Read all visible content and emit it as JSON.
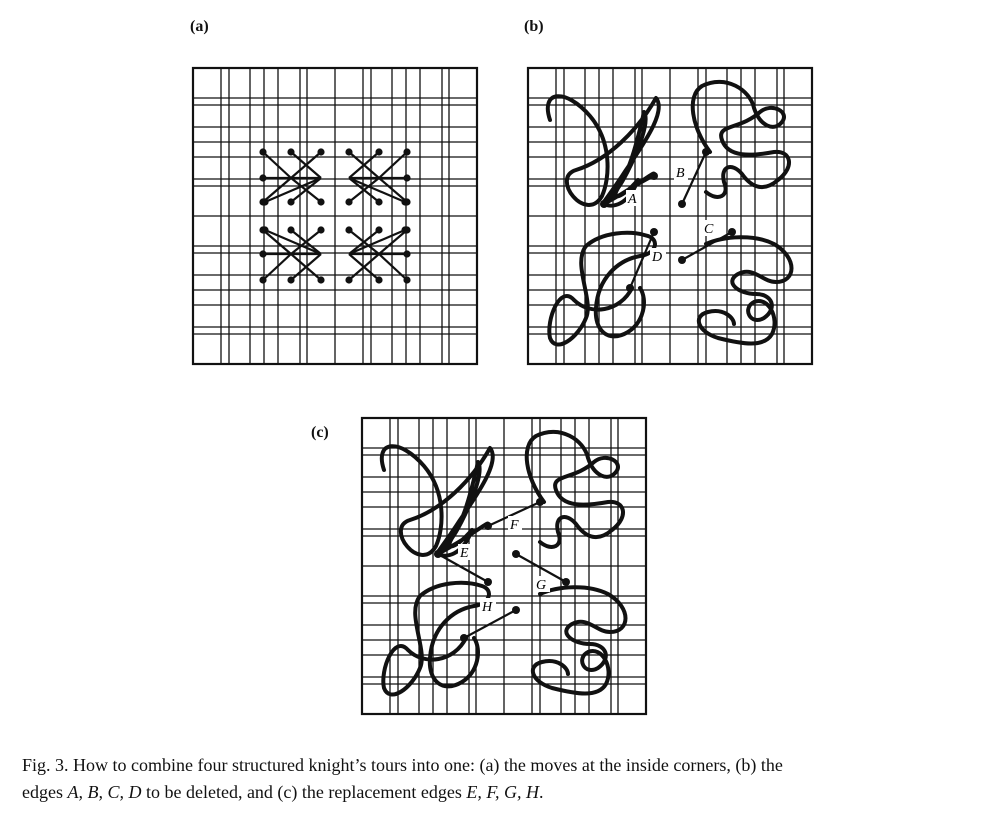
{
  "panels": [
    {
      "id": "a",
      "label": "(a)"
    },
    {
      "id": "b",
      "label": "(b)",
      "edge_labels": [
        "A",
        "B",
        "C",
        "D"
      ]
    },
    {
      "id": "c",
      "label": "(c)",
      "edge_labels": [
        "E",
        "F",
        "G",
        "H"
      ]
    }
  ],
  "caption": {
    "lead": "Fig. 3. How to combine four structured knight’s tours into one: (a) the moves at the inside corners, (b) the",
    "mid_1": "edges ",
    "mid_edges": "A, B, C, D",
    "mid_2": " to be deleted, and (c) the replacement edges ",
    "end_edges": "E, F, G, H",
    "end": "."
  }
}
